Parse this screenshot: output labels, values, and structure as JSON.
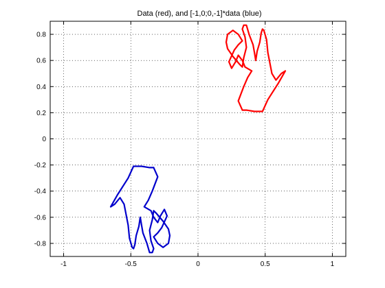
{
  "chart_data": {
    "type": "line",
    "title": "Data (red), and [-1,0;0,-1]*data (blue)",
    "xlabel": "",
    "ylabel": "",
    "xlim": [
      -1.1,
      1.1
    ],
    "ylim": [
      -0.9,
      0.9
    ],
    "xticks": [
      -1,
      -0.5,
      0,
      0.5,
      1
    ],
    "xtick_labels": [
      "-1",
      "-0.5",
      "0",
      "0.5",
      "1"
    ],
    "yticks": [
      -0.8,
      -0.6,
      -0.4,
      -0.2,
      0,
      0.2,
      0.4,
      0.6,
      0.8
    ],
    "ytick_labels": [
      "-0.8",
      "-0.6",
      "-0.4",
      "-0.2",
      "0",
      "0.2",
      "0.4",
      "0.6",
      "0.8"
    ],
    "grid": true,
    "series": [
      {
        "color": "#ff0000",
        "x": [
          0.33,
          0.3,
          0.34,
          0.37,
          0.4,
          0.35,
          0.33,
          0.3,
          0.28,
          0.25,
          0.23,
          0.27,
          0.3,
          0.33,
          0.3,
          0.26,
          0.22,
          0.21,
          0.22,
          0.26,
          0.31,
          0.33,
          0.34,
          0.36,
          0.35,
          0.33,
          0.34,
          0.36,
          0.38,
          0.41,
          0.42,
          0.43,
          0.44,
          0.46,
          0.47,
          0.48,
          0.49,
          0.51,
          0.52,
          0.55,
          0.58,
          0.62,
          0.65,
          0.6,
          0.52,
          0.48,
          0.47,
          0.42,
          0.36,
          0.33
        ],
        "y": [
          0.22,
          0.29,
          0.4,
          0.47,
          0.52,
          0.55,
          0.6,
          0.64,
          0.59,
          0.54,
          0.59,
          0.68,
          0.72,
          0.75,
          0.8,
          0.83,
          0.8,
          0.74,
          0.69,
          0.63,
          0.57,
          0.55,
          0.62,
          0.7,
          0.78,
          0.84,
          0.87,
          0.87,
          0.8,
          0.72,
          0.66,
          0.6,
          0.67,
          0.74,
          0.81,
          0.84,
          0.83,
          0.76,
          0.66,
          0.5,
          0.45,
          0.5,
          0.52,
          0.43,
          0.3,
          0.21,
          0.21,
          0.21,
          0.22,
          0.22
        ]
      },
      {
        "color": "#0000cc",
        "x": [
          -0.33,
          -0.3,
          -0.34,
          -0.37,
          -0.4,
          -0.35,
          -0.33,
          -0.3,
          -0.28,
          -0.25,
          -0.23,
          -0.27,
          -0.3,
          -0.33,
          -0.3,
          -0.26,
          -0.22,
          -0.21,
          -0.22,
          -0.26,
          -0.31,
          -0.33,
          -0.34,
          -0.36,
          -0.35,
          -0.33,
          -0.34,
          -0.36,
          -0.38,
          -0.41,
          -0.42,
          -0.43,
          -0.44,
          -0.46,
          -0.47,
          -0.48,
          -0.49,
          -0.51,
          -0.52,
          -0.55,
          -0.58,
          -0.62,
          -0.65,
          -0.6,
          -0.52,
          -0.48,
          -0.47,
          -0.42,
          -0.36,
          -0.33
        ],
        "y": [
          -0.22,
          -0.29,
          -0.4,
          -0.47,
          -0.52,
          -0.55,
          -0.6,
          -0.64,
          -0.59,
          -0.54,
          -0.59,
          -0.68,
          -0.72,
          -0.75,
          -0.8,
          -0.83,
          -0.8,
          -0.74,
          -0.69,
          -0.63,
          -0.57,
          -0.55,
          -0.62,
          -0.7,
          -0.78,
          -0.84,
          -0.87,
          -0.87,
          -0.8,
          -0.72,
          -0.66,
          -0.6,
          -0.67,
          -0.74,
          -0.81,
          -0.84,
          -0.83,
          -0.76,
          -0.66,
          -0.5,
          -0.45,
          -0.5,
          -0.52,
          -0.43,
          -0.3,
          -0.21,
          -0.21,
          -0.21,
          -0.22,
          -0.22
        ]
      }
    ]
  }
}
